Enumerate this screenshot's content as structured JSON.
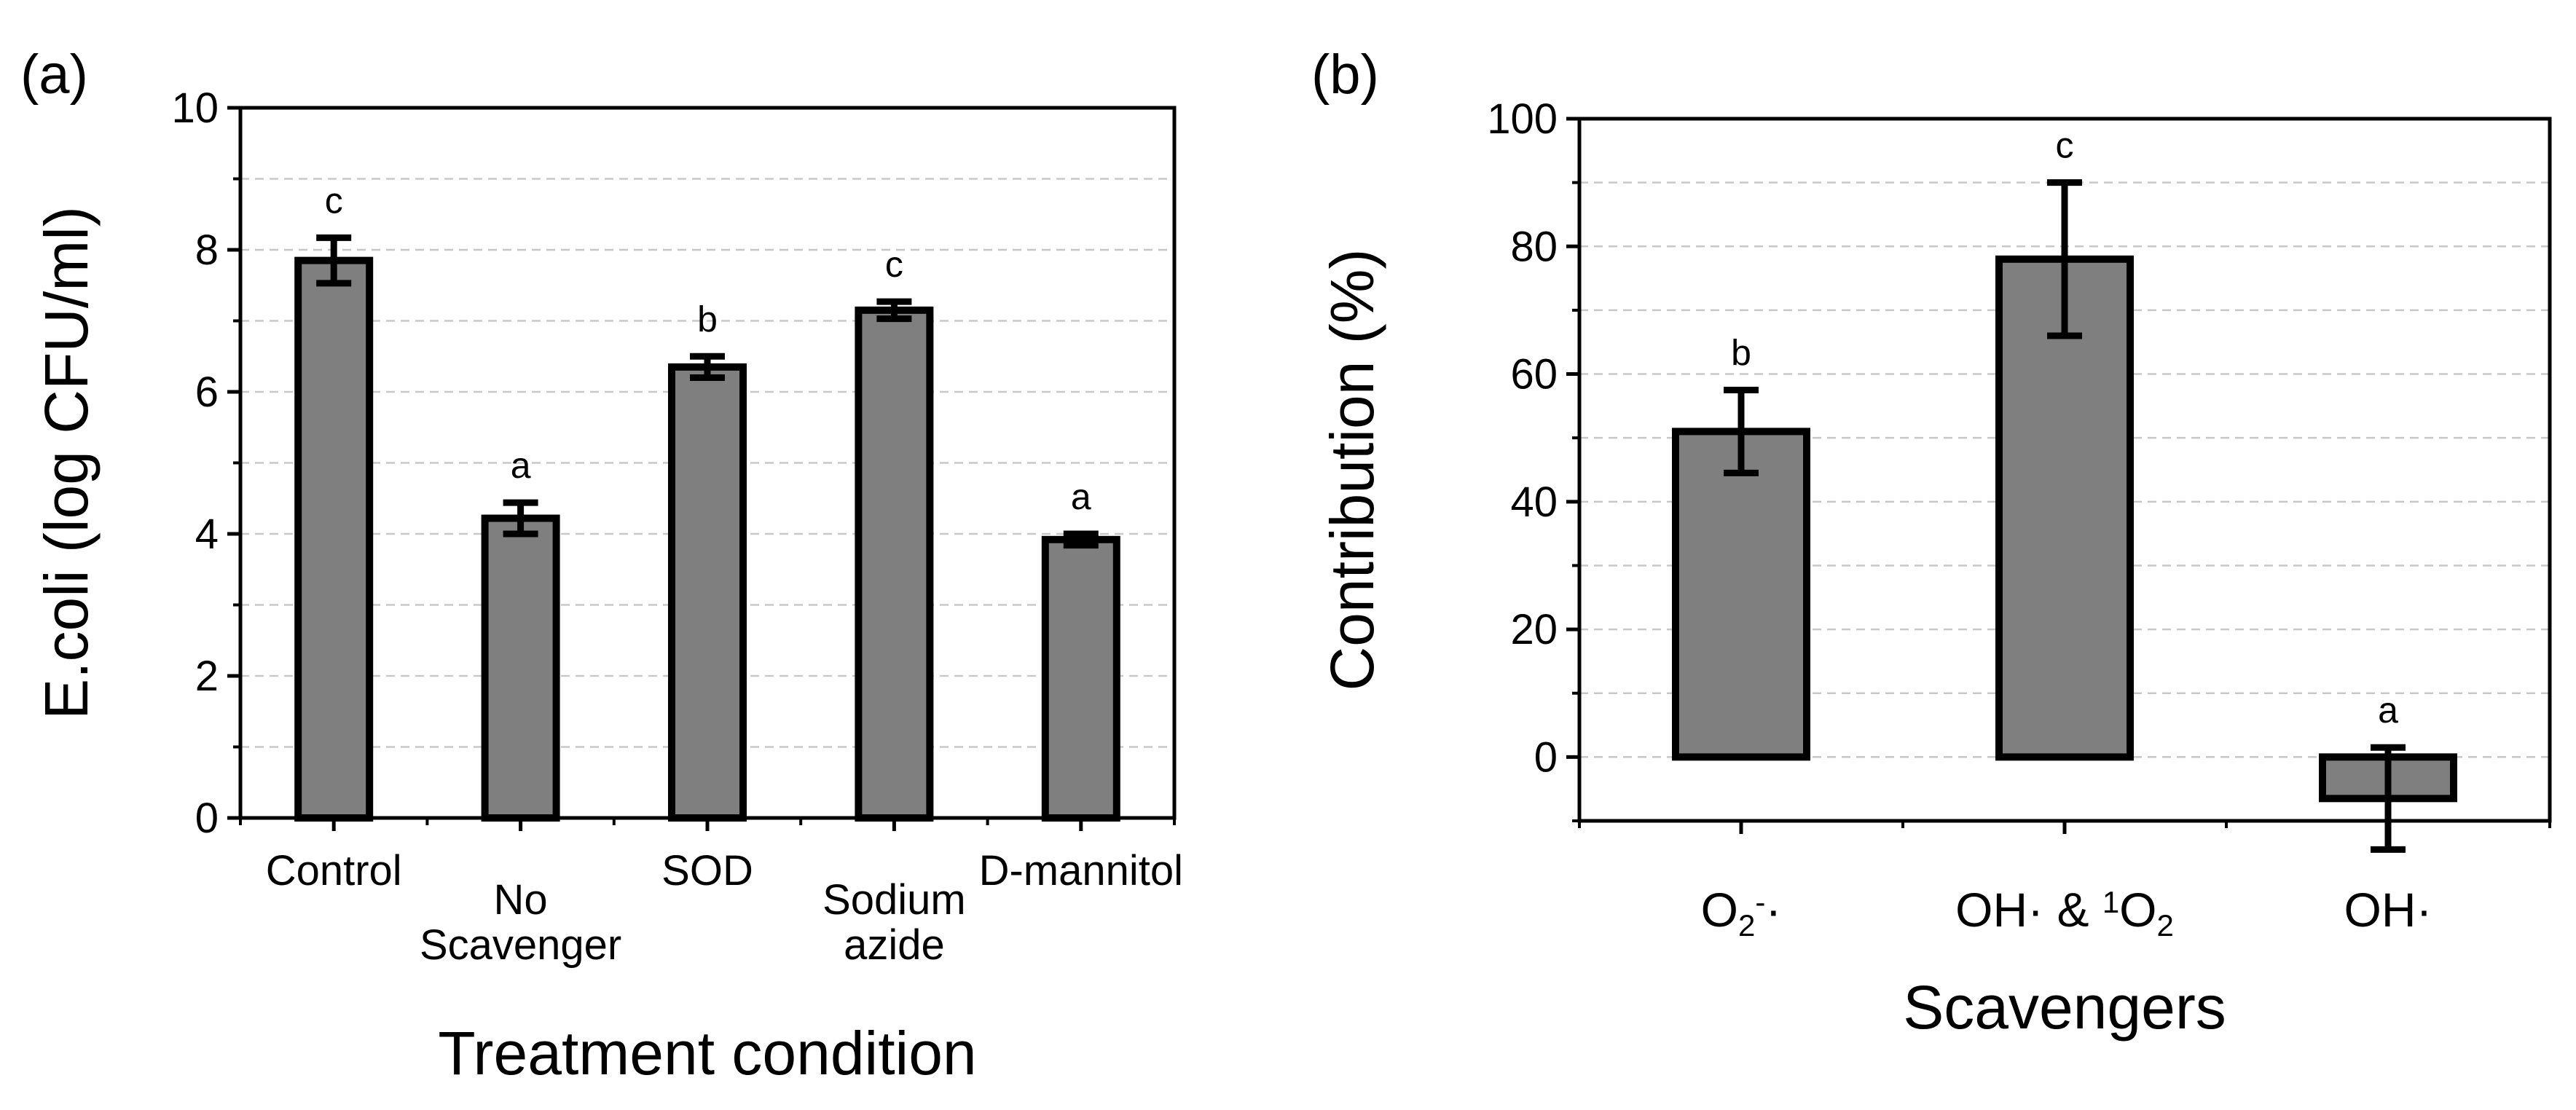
{
  "panels": [
    {
      "panel_label": "(a)",
      "chart_data": {
        "type": "bar",
        "title": "",
        "xlabel": "Treatment condition",
        "ylabel": "E.coli (log CFU/ml)",
        "ylim": [
          0,
          10
        ],
        "yticks": [
          0,
          2,
          4,
          6,
          8,
          10
        ],
        "yminor_step": 1,
        "grid": true,
        "categories": [
          [
            "Control"
          ],
          [
            "No",
            "Scavenger"
          ],
          [
            "SOD"
          ],
          [
            "Sodium",
            "azide"
          ],
          [
            "D-mannitol"
          ]
        ],
        "values": [
          7.85,
          4.22,
          6.35,
          7.15,
          3.92
        ],
        "errors": [
          0.32,
          0.22,
          0.15,
          0.12,
          0.08
        ],
        "significance": [
          "c",
          "a",
          "b",
          "c",
          "a"
        ]
      }
    },
    {
      "panel_label": "(b)",
      "chart_data": {
        "type": "bar",
        "title": "",
        "xlabel": "Scavengers",
        "ylabel": "Contribution (%)",
        "ylim": [
          -10,
          100
        ],
        "yticks": [
          0,
          20,
          40,
          60,
          80,
          100
        ],
        "yminor_step": 10,
        "grid": true,
        "categories": [
          [
            {
              "t": "O"
            },
            {
              "t": "2",
              "sub": true
            },
            {
              "t": "-",
              "sup": true
            },
            {
              "t": "·"
            }
          ],
          [
            {
              "t": "OH· & "
            },
            {
              "t": "1",
              "sup": true
            },
            {
              "t": "O"
            },
            {
              "t": "2",
              "sub": true
            }
          ],
          [
            {
              "t": "OH·"
            }
          ]
        ],
        "values": [
          51,
          78,
          -6.5
        ],
        "errors": [
          6.5,
          12,
          8
        ],
        "significance": [
          "b",
          "c",
          "a"
        ]
      }
    }
  ]
}
